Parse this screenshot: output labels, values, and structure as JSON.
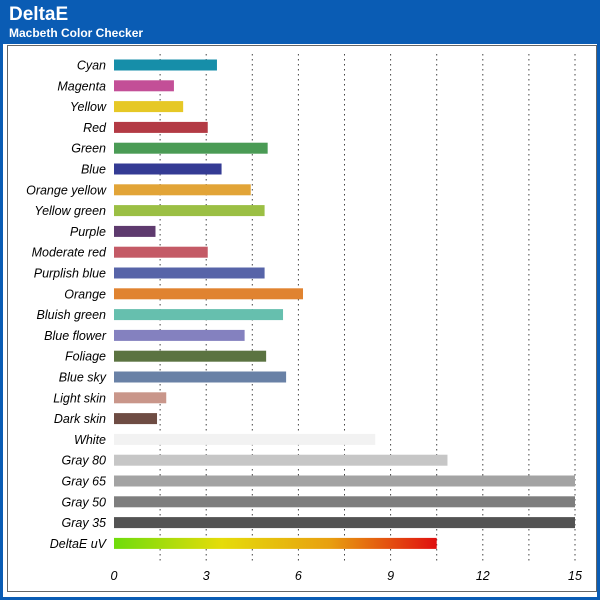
{
  "header": {
    "title": "DeltaE",
    "subtitle": "Macbeth Color Checker"
  },
  "colors": {
    "frame": "#0a5cb4",
    "grid": "#444444"
  },
  "chart_data": {
    "type": "bar",
    "orientation": "horizontal",
    "title": "DeltaE",
    "subtitle": "Macbeth Color Checker",
    "xlabel": "",
    "ylabel": "",
    "xlim": [
      0,
      15
    ],
    "xticks": [
      0,
      3,
      6,
      9,
      12,
      15
    ],
    "grid": "vertical dotted",
    "legend": "none",
    "categories": [
      "Cyan",
      "Magenta",
      "Yellow",
      "Red",
      "Green",
      "Blue",
      "Orange yellow",
      "Yellow green",
      "Purple",
      "Moderate red",
      "Purplish blue",
      "Orange",
      "Bluish green",
      "Blue flower",
      "Foliage",
      "Blue sky",
      "Light skin",
      "Dark skin",
      "White",
      "Gray 80",
      "Gray 65",
      "Gray 50",
      "Gray 35",
      "DeltaE uV"
    ],
    "values": [
      3.35,
      1.95,
      2.25,
      3.05,
      5.0,
      3.5,
      4.45,
      4.9,
      1.35,
      3.05,
      4.9,
      6.15,
      5.5,
      4.25,
      4.95,
      5.6,
      1.7,
      1.4,
      8.5,
      10.85,
      15.0,
      15.0,
      15.0,
      10.5
    ],
    "bar_colors": [
      "#168ea9",
      "#c34f97",
      "#e6c826",
      "#b33a44",
      "#4a9b55",
      "#343b94",
      "#e2a437",
      "#9bbf44",
      "#5e3a6e",
      "#c45a66",
      "#5764a8",
      "#e08330",
      "#66bfae",
      "#8481bf",
      "#5b7341",
      "#6981a6",
      "#c9968a",
      "#6e4c43",
      "#f2f2f2",
      "#c6c6c6",
      "#a3a3a3",
      "#7e7e7e",
      "#535353",
      "gradient"
    ],
    "gradient_colors": [
      "#6fdc0c",
      "#e5dc0a",
      "#e8a010",
      "#e01010"
    ]
  }
}
